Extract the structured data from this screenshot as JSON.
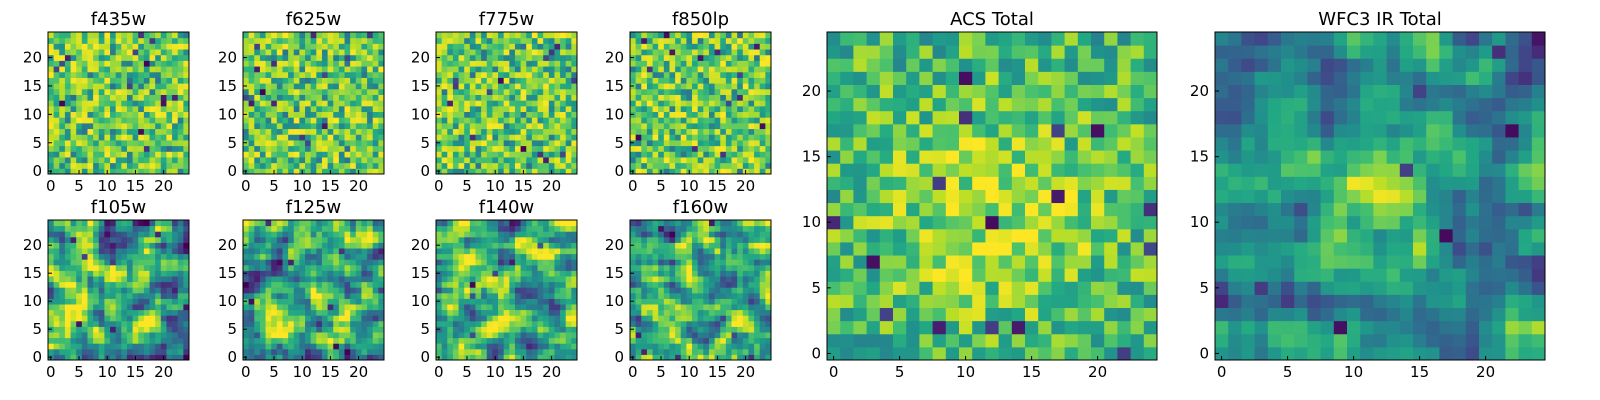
{
  "figure": {
    "colormap": "viridis",
    "grid_size": 25
  },
  "chart_data": [
    {
      "type": "heatmap",
      "title": "f435w",
      "xlim": [
        0,
        24
      ],
      "ylim": [
        0,
        24
      ],
      "xticks": [
        0,
        5,
        10,
        15,
        20
      ],
      "yticks": [
        0,
        5,
        10,
        15,
        20
      ],
      "value_range": [
        0,
        1
      ],
      "texture": "noisy",
      "seed": 11
    },
    {
      "type": "heatmap",
      "title": "f625w",
      "xlim": [
        0,
        24
      ],
      "ylim": [
        0,
        24
      ],
      "xticks": [
        0,
        5,
        10,
        15,
        20
      ],
      "yticks": [
        0,
        5,
        10,
        15,
        20
      ],
      "value_range": [
        0,
        1
      ],
      "texture": "noisy",
      "seed": 23
    },
    {
      "type": "heatmap",
      "title": "f775w",
      "xlim": [
        0,
        24
      ],
      "ylim": [
        0,
        24
      ],
      "xticks": [
        0,
        5,
        10,
        15,
        20
      ],
      "yticks": [
        0,
        5,
        10,
        15,
        20
      ],
      "value_range": [
        0,
        1
      ],
      "texture": "noisy",
      "seed": 37
    },
    {
      "type": "heatmap",
      "title": "f850lp",
      "xlim": [
        0,
        24
      ],
      "ylim": [
        0,
        24
      ],
      "xticks": [
        0,
        5,
        10,
        15,
        20
      ],
      "yticks": [
        0,
        5,
        10,
        15,
        20
      ],
      "value_range": [
        0,
        1
      ],
      "texture": "noisy",
      "seed": 41
    },
    {
      "type": "heatmap",
      "title": "f105w",
      "xlim": [
        0,
        24
      ],
      "ylim": [
        0,
        24
      ],
      "xticks": [
        0,
        5,
        10,
        15,
        20
      ],
      "yticks": [
        0,
        5,
        10,
        15,
        20
      ],
      "value_range": [
        0,
        1
      ],
      "texture": "smooth",
      "seed": 53
    },
    {
      "type": "heatmap",
      "title": "f125w",
      "xlim": [
        0,
        24
      ],
      "ylim": [
        0,
        24
      ],
      "xticks": [
        0,
        5,
        10,
        15,
        20
      ],
      "yticks": [
        0,
        5,
        10,
        15,
        20
      ],
      "value_range": [
        0,
        1
      ],
      "texture": "smooth",
      "seed": 67
    },
    {
      "type": "heatmap",
      "title": "f140w",
      "xlim": [
        0,
        24
      ],
      "ylim": [
        0,
        24
      ],
      "xticks": [
        0,
        5,
        10,
        15,
        20
      ],
      "yticks": [
        0,
        5,
        10,
        15,
        20
      ],
      "value_range": [
        0,
        1
      ],
      "texture": "smooth",
      "seed": 71
    },
    {
      "type": "heatmap",
      "title": "f160w",
      "xlim": [
        0,
        24
      ],
      "ylim": [
        0,
        24
      ],
      "xticks": [
        0,
        5,
        10,
        15,
        20
      ],
      "yticks": [
        0,
        5,
        10,
        15,
        20
      ],
      "value_range": [
        0,
        1
      ],
      "texture": "smooth",
      "seed": 89
    },
    {
      "type": "heatmap",
      "title": "ACS Total",
      "xlim": [
        0,
        24
      ],
      "ylim": [
        0,
        24
      ],
      "xticks": [
        0,
        5,
        10,
        15,
        20
      ],
      "yticks": [
        0,
        5,
        10,
        15,
        20
      ],
      "value_range": [
        0,
        1
      ],
      "texture": "total",
      "seed": 97
    },
    {
      "type": "heatmap",
      "title": "WFC3 IR Total",
      "xlim": [
        0,
        24
      ],
      "ylim": [
        0,
        24
      ],
      "xticks": [
        0,
        5,
        10,
        15,
        20
      ],
      "yticks": [
        0,
        5,
        10,
        15,
        20
      ],
      "value_range": [
        0,
        1
      ],
      "texture": "total-smooth",
      "seed": 103
    }
  ]
}
